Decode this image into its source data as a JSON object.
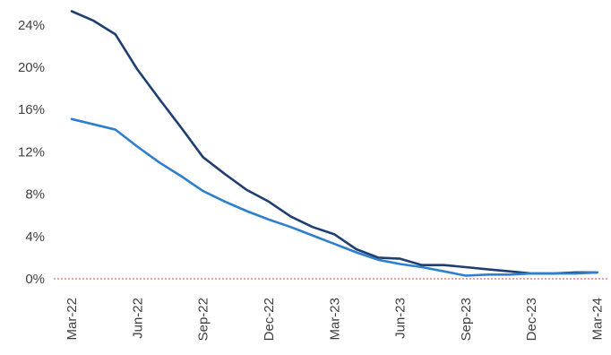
{
  "chart_data": {
    "type": "line",
    "title": "",
    "xlabel": "",
    "ylabel": "",
    "x": [
      "Mar-22",
      "Apr-22",
      "May-22",
      "Jun-22",
      "Jul-22",
      "Aug-22",
      "Sep-22",
      "Oct-22",
      "Nov-22",
      "Dec-22",
      "Jan-23",
      "Feb-23",
      "Mar-23",
      "Apr-23",
      "May-23",
      "Jun-23",
      "Jul-23",
      "Aug-23",
      "Sep-23",
      "Oct-23",
      "Nov-23",
      "Dec-23",
      "Jan-24",
      "Feb-24",
      "Mar-24"
    ],
    "x_tick_labels": [
      "Mar-22",
      "Jun-22",
      "Sep-22",
      "Dec-22",
      "Mar-23",
      "Jun-23",
      "Sep-23",
      "Dec-23",
      "Mar-24"
    ],
    "y_tick_labels": [
      "0%",
      "4%",
      "8%",
      "12%",
      "16%",
      "20%",
      "24%"
    ],
    "ylim": [
      0,
      26
    ],
    "reference_line": {
      "value": 0,
      "style": "dotted",
      "color": "#e06666"
    },
    "grid": false,
    "legend": "none",
    "series": [
      {
        "color": "#1f3f73",
        "values": [
          25.3,
          24.4,
          23.1,
          19.8,
          17.0,
          14.3,
          11.5,
          9.9,
          8.4,
          7.3,
          5.9,
          4.9,
          4.2,
          2.8,
          2.0,
          1.9,
          1.3,
          1.3,
          1.1,
          0.9,
          0.7,
          0.5,
          0.5,
          0.6,
          0.6
        ]
      },
      {
        "color": "#2f7fcf",
        "values": [
          15.1,
          14.6,
          14.1,
          12.5,
          11.0,
          9.7,
          8.3,
          7.3,
          6.4,
          5.6,
          4.9,
          4.1,
          3.3,
          2.5,
          1.8,
          1.4,
          1.1,
          0.7,
          0.3,
          0.4,
          0.4,
          0.5,
          0.5,
          0.5,
          0.6
        ]
      }
    ]
  }
}
